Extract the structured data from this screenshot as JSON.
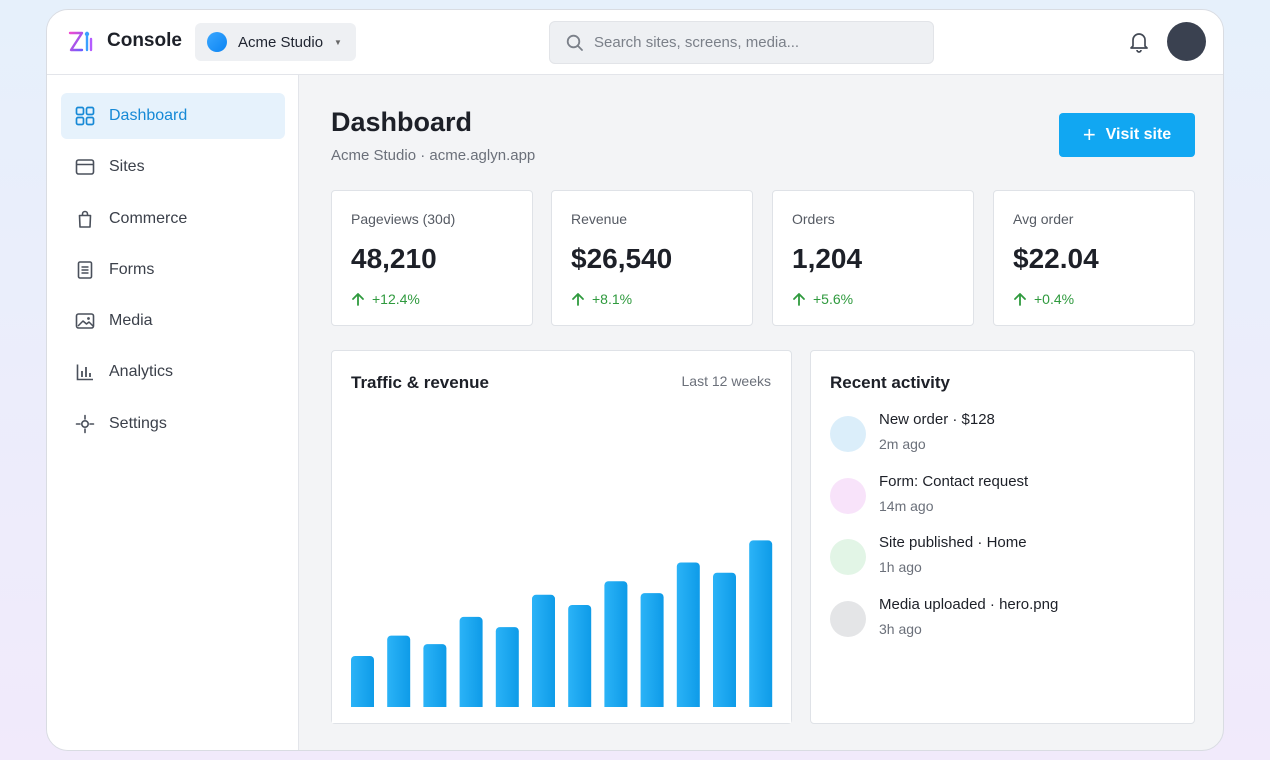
{
  "app": {
    "title": "Console",
    "workspace": "Acme Studio",
    "search_placeholder": "Search sites, screens, media..."
  },
  "sidebar": {
    "items": [
      {
        "label": "Dashboard",
        "icon": "grid-icon",
        "active": true
      },
      {
        "label": "Sites",
        "icon": "browser-window-icon",
        "active": false
      },
      {
        "label": "Commerce",
        "icon": "shopping-bag-icon",
        "active": false
      },
      {
        "label": "Forms",
        "icon": "document-icon",
        "active": false
      },
      {
        "label": "Media",
        "icon": "image-icon",
        "active": false
      },
      {
        "label": "Analytics",
        "icon": "bar-chart-icon",
        "active": false
      },
      {
        "label": "Settings",
        "icon": "settings-icon",
        "active": false
      }
    ]
  },
  "main": {
    "title": "Dashboard",
    "subtitle": "Acme Studio · acme.aglyn.app",
    "primary_action": "Visit site"
  },
  "kpis": [
    {
      "label": "Pageviews (30d)",
      "value": "48,210",
      "delta": "+12.4%"
    },
    {
      "label": "Revenue",
      "value": "$26,540",
      "delta": "+8.1%"
    },
    {
      "label": "Orders",
      "value": "1,204",
      "delta": "+5.6%"
    },
    {
      "label": "Avg order",
      "value": "$22.04",
      "delta": "+0.4%"
    }
  ],
  "traffic_panel": {
    "title": "Traffic & revenue",
    "range": "Last 12 weeks"
  },
  "chart_data": {
    "type": "bar",
    "title": "Traffic & revenue",
    "categories": [
      "",
      "",
      "",
      "",
      "",
      "",
      "",
      "",
      "",
      "",
      "",
      ""
    ],
    "values": [
      30,
      42,
      37,
      53,
      47,
      66,
      60,
      74,
      67,
      85,
      79,
      98
    ],
    "ylim": [
      0,
      100
    ],
    "grid": false,
    "colors": [
      "#2bb3f7",
      "#0e9be8"
    ]
  },
  "activity": {
    "title": "Recent activity",
    "items": [
      {
        "title": "New order · $128",
        "time": "2m ago",
        "color": "#dbeefa"
      },
      {
        "title": "Form: Contact request",
        "time": "14m ago",
        "color": "#f8e3fa"
      },
      {
        "title": "Site published · Home",
        "time": "1h ago",
        "color": "#e2f5e6"
      },
      {
        "title": "Media uploaded · hero.png",
        "time": "3h ago",
        "color": "#e4e5e7"
      }
    ]
  },
  "colors": {
    "accent": "#11a7f2",
    "positive": "#2f9a3e",
    "active_nav_bg": "#e6f2fc",
    "active_nav_text": "#1689d6"
  }
}
